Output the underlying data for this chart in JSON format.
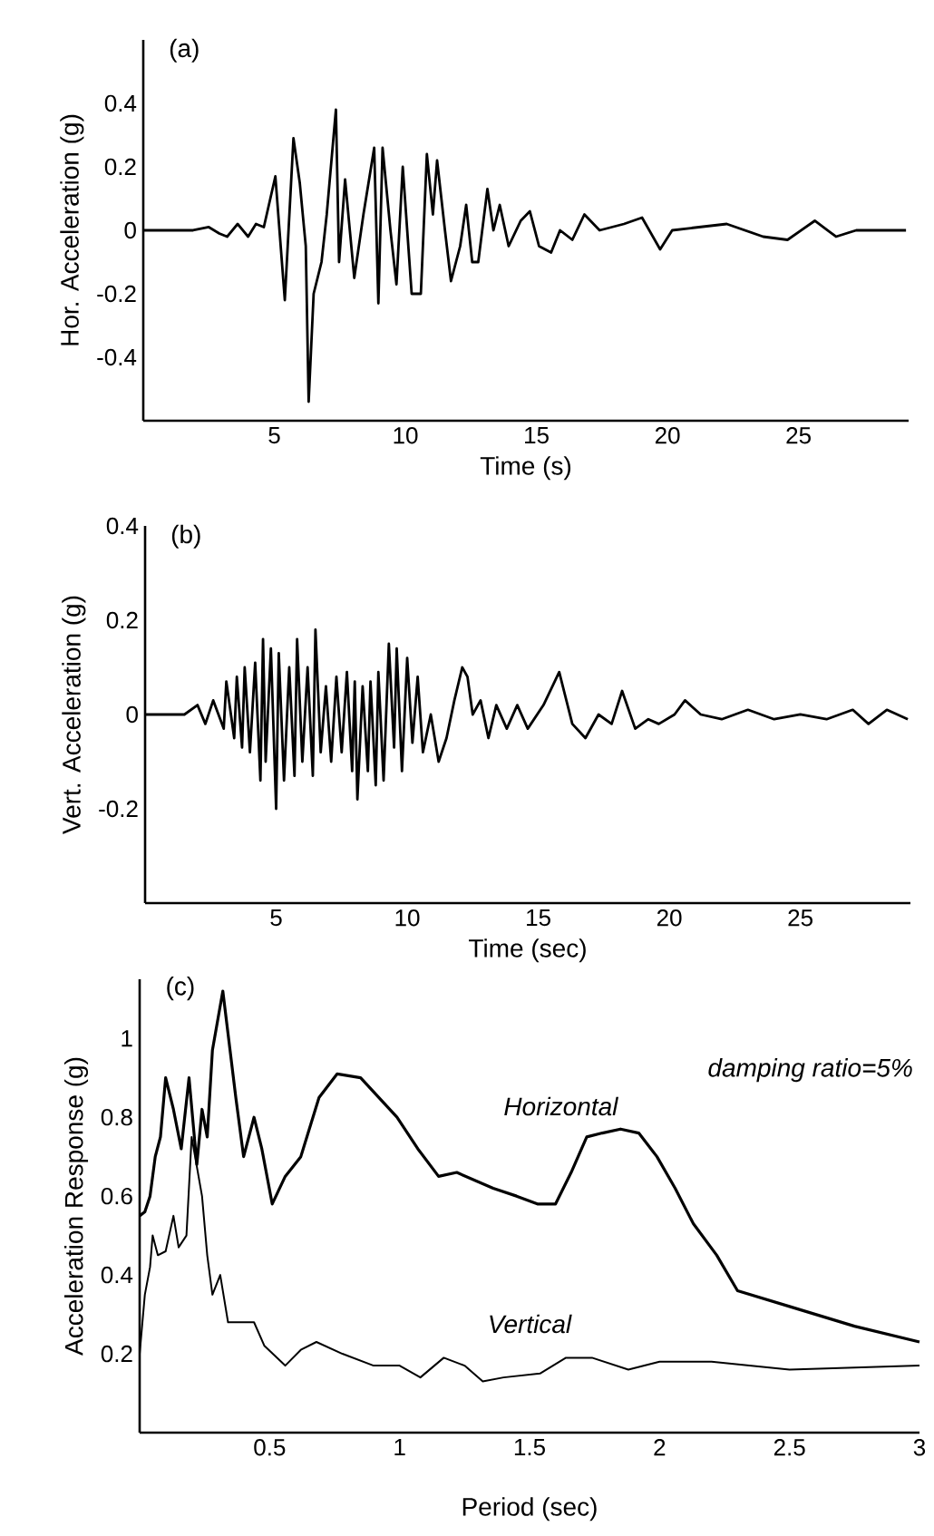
{
  "chart_data": [
    {
      "type": "line",
      "title": "(a)",
      "xlabel": "Time (s)",
      "ylabel": "Hor. Acceleration (g)",
      "xlim": [
        0,
        29.2
      ],
      "ylim": [
        -0.6,
        0.6
      ],
      "xticks": [
        5,
        10,
        15,
        20,
        25
      ],
      "yticks": [
        -0.4,
        -0.2,
        0,
        0.2,
        0.4
      ],
      "marker": "none",
      "line_style": "solid",
      "series": [
        {
          "color": "#000000",
          "x": [
            0,
            1.9,
            2.5,
            2.9,
            3.2,
            3.6,
            4.0,
            4.3,
            4.6,
            5.04,
            5.4,
            5.73,
            5.97,
            6.2,
            6.31,
            6.5,
            6.8,
            7.0,
            7.35,
            7.47,
            7.7,
            8.05,
            8.4,
            8.81,
            8.97,
            9.13,
            9.43,
            9.66,
            9.9,
            10.24,
            10.59,
            10.82,
            11.05,
            11.21,
            11.51,
            11.74,
            12.09,
            12.32,
            12.55,
            12.78,
            13.13,
            13.36,
            13.6,
            13.94,
            14.4,
            14.75,
            15.1,
            15.56,
            15.9,
            16.37,
            16.83,
            17.41,
            18.34,
            19.03,
            19.72,
            20.18,
            21.2,
            22.26,
            23.65,
            24.58,
            25.62,
            26.43,
            27.2,
            28.05,
            29.1
          ],
          "values": [
            0,
            0,
            0.01,
            -0.01,
            -0.02,
            0.02,
            -0.02,
            0.02,
            0.01,
            0.17,
            -0.22,
            0.29,
            0.15,
            -0.05,
            -0.54,
            -0.2,
            -0.1,
            0.05,
            0.38,
            -0.1,
            0.16,
            -0.15,
            0.05,
            0.26,
            -0.23,
            0.26,
            0.0,
            -0.17,
            0.2,
            -0.2,
            -0.2,
            0.24,
            0.05,
            0.22,
            0.0,
            -0.16,
            -0.05,
            0.08,
            -0.1,
            -0.1,
            0.13,
            0.0,
            0.08,
            -0.05,
            0.03,
            0.06,
            -0.05,
            -0.07,
            0.0,
            -0.03,
            0.05,
            0.0,
            0.02,
            0.04,
            -0.06,
            0.0,
            0.01,
            0.02,
            -0.02,
            -0.03,
            0.03,
            -0.02,
            0.0,
            0.0,
            0.0
          ]
        }
      ]
    },
    {
      "type": "line",
      "title": "(b)",
      "xlabel": "Time (sec)",
      "ylabel": "Vert. Acceleration (g)",
      "xlim": [
        0,
        29.2
      ],
      "ylim": [
        -0.4,
        0.4
      ],
      "xticks": [
        5,
        10,
        15,
        20,
        25
      ],
      "yticks": [
        -0.2,
        0,
        0.2,
        0.4
      ],
      "marker": "none",
      "line_style": "solid",
      "series": [
        {
          "color": "#000000",
          "x": [
            0,
            1.5,
            2.0,
            2.3,
            2.6,
            3.0,
            3.1,
            3.4,
            3.5,
            3.7,
            3.8,
            4.0,
            4.2,
            4.4,
            4.5,
            4.6,
            4.8,
            5.0,
            5.1,
            5.3,
            5.5,
            5.7,
            5.8,
            6.0,
            6.2,
            6.4,
            6.5,
            6.7,
            6.9,
            7.1,
            7.3,
            7.5,
            7.7,
            7.9,
            8.0,
            8.1,
            8.3,
            8.5,
            8.6,
            8.8,
            8.9,
            9.1,
            9.3,
            9.5,
            9.6,
            9.8,
            10.0,
            10.2,
            10.4,
            10.6,
            10.9,
            11.2,
            11.5,
            11.8,
            12.1,
            12.3,
            12.5,
            12.8,
            13.1,
            13.4,
            13.8,
            14.2,
            14.6,
            15.2,
            15.8,
            16.3,
            16.8,
            17.3,
            17.8,
            18.2,
            18.7,
            19.2,
            19.6,
            20.2,
            20.6,
            21.2,
            22.0,
            23.0,
            24.0,
            25.0,
            26.0,
            27.0,
            27.6,
            28.3,
            29.1
          ],
          "values": [
            0,
            0,
            0.02,
            -0.02,
            0.03,
            -0.03,
            0.07,
            -0.05,
            0.08,
            -0.07,
            0.1,
            -0.08,
            0.11,
            -0.14,
            0.16,
            -0.1,
            0.14,
            -0.2,
            0.13,
            -0.14,
            0.1,
            -0.13,
            0.16,
            -0.1,
            0.1,
            -0.13,
            0.18,
            -0.08,
            0.06,
            -0.1,
            0.08,
            -0.08,
            0.09,
            -0.12,
            0.07,
            -0.18,
            0.06,
            -0.12,
            0.07,
            -0.15,
            0.09,
            -0.14,
            0.15,
            -0.07,
            0.14,
            -0.12,
            0.12,
            -0.06,
            0.08,
            -0.08,
            0.0,
            -0.1,
            -0.05,
            0.03,
            0.1,
            0.08,
            0.0,
            0.03,
            -0.05,
            0.02,
            -0.03,
            0.02,
            -0.03,
            0.02,
            0.09,
            -0.02,
            -0.05,
            0.0,
            -0.02,
            0.05,
            -0.03,
            -0.01,
            -0.02,
            0.0,
            0.03,
            0.0,
            -0.01,
            0.01,
            -0.01,
            0.0,
            -0.01,
            0.01,
            -0.02,
            0.01,
            -0.01
          ]
        }
      ]
    },
    {
      "type": "line",
      "title": "(c)",
      "xlabel": "Period (sec)",
      "ylabel": "Acceleration Response (g)",
      "xlim": [
        0,
        3
      ],
      "ylim": [
        0,
        1.15
      ],
      "xticks": [
        0.5,
        1,
        1.5,
        2,
        2.5,
        3
      ],
      "yticks": [
        0.2,
        0.4,
        0.6,
        0.8,
        1
      ],
      "marker": "none",
      "line_style": "solid",
      "annotations": [
        "damping ratio=5%"
      ],
      "series": [
        {
          "name": "Horizontal",
          "color": "#000000",
          "x": [
            0.0,
            0.02,
            0.04,
            0.06,
            0.08,
            0.1,
            0.13,
            0.16,
            0.19,
            0.22,
            0.24,
            0.26,
            0.28,
            0.32,
            0.37,
            0.4,
            0.44,
            0.47,
            0.51,
            0.56,
            0.62,
            0.69,
            0.76,
            0.85,
            0.92,
            0.99,
            1.07,
            1.15,
            1.22,
            1.29,
            1.36,
            1.45,
            1.53,
            1.6,
            1.66,
            1.72,
            1.78,
            1.85,
            1.92,
            1.99,
            2.06,
            2.13,
            2.22,
            2.3,
            2.5,
            2.75,
            3.0
          ],
          "values": [
            0.55,
            0.56,
            0.6,
            0.7,
            0.75,
            0.9,
            0.82,
            0.72,
            0.9,
            0.68,
            0.82,
            0.75,
            0.97,
            1.12,
            0.85,
            0.7,
            0.8,
            0.72,
            0.58,
            0.65,
            0.7,
            0.85,
            0.91,
            0.9,
            0.85,
            0.8,
            0.72,
            0.65,
            0.66,
            0.64,
            0.62,
            0.6,
            0.58,
            0.58,
            0.66,
            0.75,
            0.76,
            0.77,
            0.76,
            0.7,
            0.62,
            0.53,
            0.45,
            0.36,
            0.32,
            0.27,
            0.23
          ]
        },
        {
          "name": "Vertical",
          "color": "#000000",
          "x": [
            0.0,
            0.02,
            0.04,
            0.05,
            0.07,
            0.1,
            0.13,
            0.15,
            0.18,
            0.2,
            0.24,
            0.26,
            0.28,
            0.31,
            0.34,
            0.4,
            0.44,
            0.48,
            0.56,
            0.62,
            0.68,
            0.78,
            0.9,
            1.0,
            1.08,
            1.17,
            1.25,
            1.32,
            1.4,
            1.54,
            1.64,
            1.74,
            1.88,
            2.0,
            2.2,
            2.5,
            3.0
          ],
          "values": [
            0.2,
            0.35,
            0.42,
            0.5,
            0.45,
            0.46,
            0.55,
            0.47,
            0.5,
            0.75,
            0.6,
            0.45,
            0.35,
            0.4,
            0.28,
            0.28,
            0.28,
            0.22,
            0.17,
            0.21,
            0.23,
            0.2,
            0.17,
            0.17,
            0.14,
            0.19,
            0.17,
            0.13,
            0.14,
            0.15,
            0.19,
            0.19,
            0.16,
            0.18,
            0.18,
            0.16,
            0.17
          ]
        }
      ]
    }
  ]
}
